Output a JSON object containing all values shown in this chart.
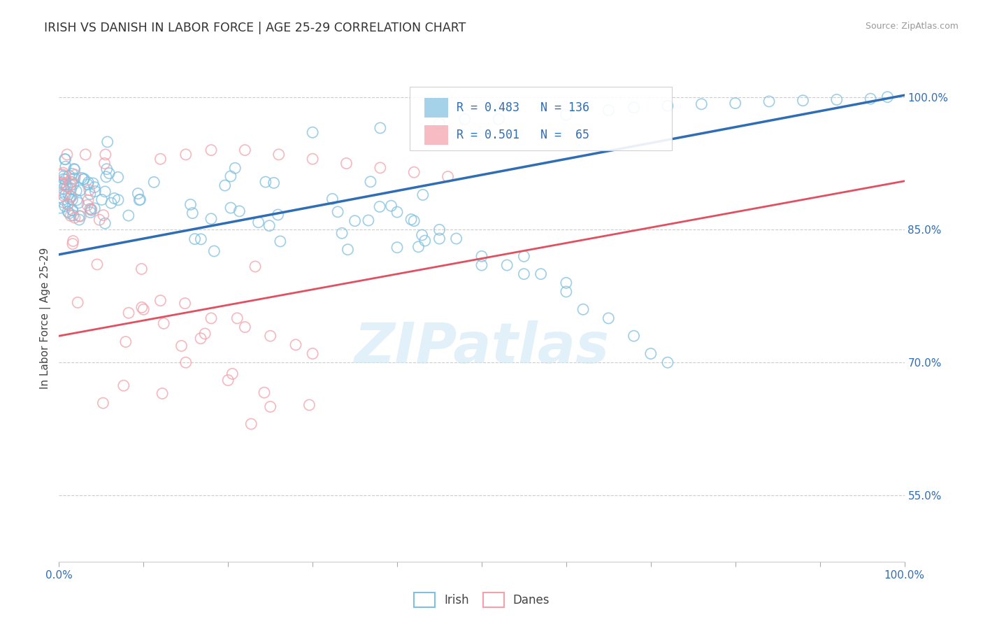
{
  "title": "IRISH VS DANISH IN LABOR FORCE | AGE 25-29 CORRELATION CHART",
  "source": "Source: ZipAtlas.com",
  "ylabel": "In Labor Force | Age 25-29",
  "ytick_labels": [
    "55.0%",
    "70.0%",
    "85.0%",
    "100.0%"
  ],
  "ytick_values": [
    0.55,
    0.7,
    0.85,
    1.0
  ],
  "xlim": [
    0.0,
    1.0
  ],
  "ylim": [
    0.475,
    1.025
  ],
  "irish_color": "#7fbfdf",
  "danish_color": "#f4a0aa",
  "irish_line_color": "#2f6db5",
  "danish_line_color": "#e05060",
  "irish_R": 0.483,
  "irish_N": 136,
  "danish_R": 0.501,
  "danish_N": 65,
  "watermark_text": "ZIPatlas",
  "background_color": "#ffffff",
  "grid_color": "#cccccc",
  "legend_box_color": "#f0f0f0",
  "title_color": "#333333",
  "source_color": "#999999",
  "axis_label_color": "#444444",
  "right_tick_color": "#2f6db5",
  "bottom_tick_color": "#2f6db5",
  "irish_line_start_y": 0.822,
  "irish_line_end_y": 1.002,
  "danish_line_start_y": 0.73,
  "danish_line_end_y": 0.905
}
